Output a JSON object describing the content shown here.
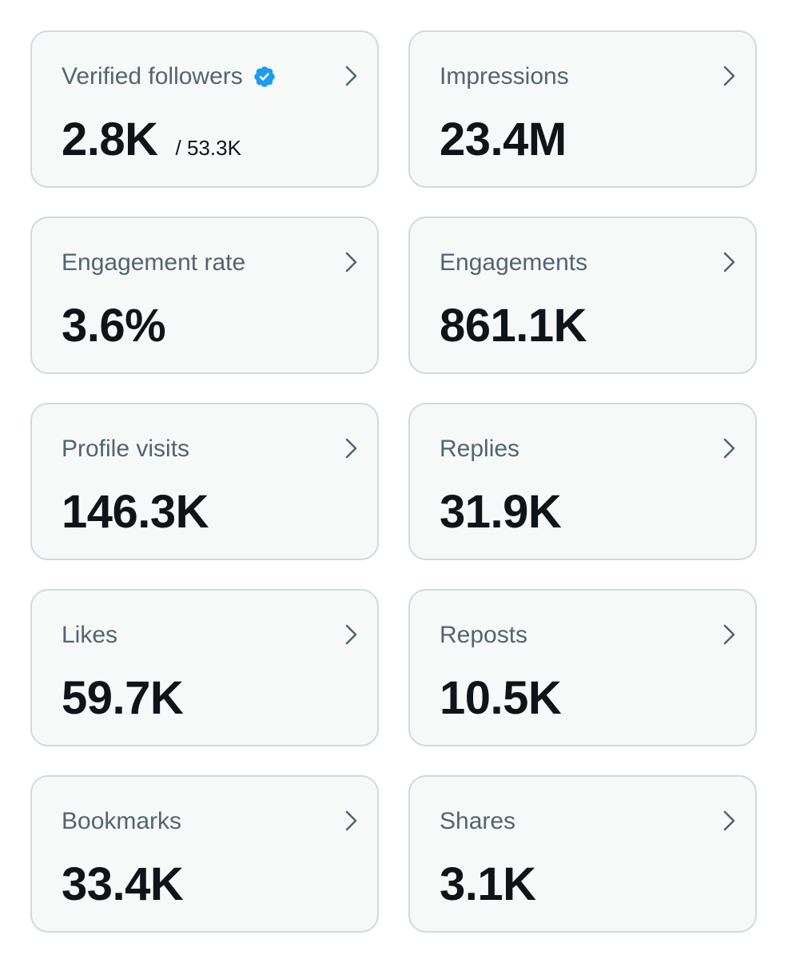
{
  "metrics": [
    {
      "label": "Verified followers",
      "value": "2.8K",
      "sub": "/ 53.3K",
      "verified": true
    },
    {
      "label": "Impressions",
      "value": "23.4M"
    },
    {
      "label": "Engagement rate",
      "value": "3.6%"
    },
    {
      "label": "Engagements",
      "value": "861.1K"
    },
    {
      "label": "Profile visits",
      "value": "146.3K"
    },
    {
      "label": "Replies",
      "value": "31.9K"
    },
    {
      "label": "Likes",
      "value": "59.7K"
    },
    {
      "label": "Reposts",
      "value": "10.5K"
    },
    {
      "label": "Bookmarks",
      "value": "33.4K"
    },
    {
      "label": "Shares",
      "value": "3.1K"
    }
  ],
  "icons": {
    "verified": "verified-badge-icon",
    "chevron": "chevron-right-icon"
  },
  "colors": {
    "verified_blue": "#1d9bf0",
    "card_bg": "#f7f9f9",
    "card_border": "#cfd9de",
    "label_text": "#536471",
    "value_text": "#0f1419"
  }
}
